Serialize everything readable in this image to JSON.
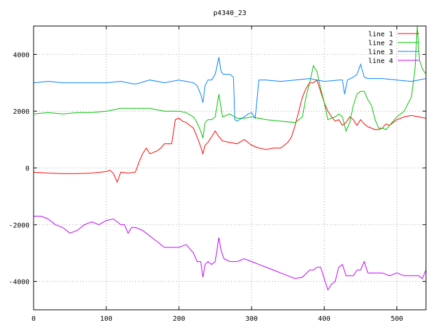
{
  "chart_data": {
    "type": "line",
    "title": "p4340_23",
    "xlabel": "",
    "ylabel": "",
    "xlim": [
      0,
      540
    ],
    "ylim": [
      -5000,
      5000
    ],
    "xticks": [
      0,
      100,
      200,
      300,
      400,
      500
    ],
    "yticks": [
      -4000,
      -2000,
      0,
      2000,
      4000
    ],
    "grid": true,
    "legend_position": "top-right",
    "series": [
      {
        "name": "line 1",
        "color": "#ff0000",
        "x": [
          0,
          20,
          40,
          60,
          80,
          100,
          105,
          110,
          115,
          120,
          130,
          140,
          145,
          150,
          155,
          160,
          165,
          170,
          175,
          180,
          185,
          190,
          195,
          200,
          205,
          210,
          215,
          220,
          225,
          230,
          233,
          236,
          240,
          245,
          250,
          255,
          260,
          270,
          280,
          290,
          300,
          310,
          320,
          330,
          340,
          350,
          355,
          360,
          365,
          370,
          375,
          380,
          385,
          390,
          395,
          400,
          405,
          410,
          415,
          420,
          425,
          430,
          435,
          440,
          445,
          450,
          455,
          460,
          465,
          470,
          475,
          480,
          485,
          490,
          500,
          510,
          520,
          530,
          540
        ],
        "values": [
          -150,
          -180,
          -200,
          -200,
          -180,
          -130,
          -80,
          -200,
          -500,
          -150,
          -180,
          -150,
          200,
          500,
          700,
          500,
          550,
          600,
          700,
          850,
          850,
          850,
          1700,
          1750,
          1650,
          1600,
          1500,
          1400,
          1100,
          750,
          500,
          800,
          900,
          1100,
          1300,
          1100,
          950,
          900,
          850,
          1000,
          800,
          700,
          650,
          700,
          700,
          900,
          1100,
          1500,
          2000,
          2500,
          2800,
          3000,
          3000,
          3100,
          2700,
          2300,
          2000,
          1800,
          1650,
          1700,
          1500,
          1600,
          1800,
          1700,
          1500,
          1700,
          1550,
          1450,
          1400,
          1350,
          1350,
          1400,
          1550,
          1500,
          1700,
          1800,
          1850,
          1800,
          1750
        ]
      },
      {
        "name": "line 2",
        "color": "#00c000",
        "x": [
          0,
          20,
          40,
          60,
          80,
          100,
          120,
          140,
          160,
          180,
          200,
          210,
          220,
          225,
          230,
          233,
          236,
          240,
          245,
          250,
          255,
          260,
          270,
          280,
          290,
          300,
          320,
          340,
          360,
          370,
          375,
          380,
          385,
          390,
          395,
          400,
          405,
          410,
          415,
          420,
          425,
          430,
          435,
          440,
          445,
          450,
          455,
          460,
          465,
          470,
          475,
          480,
          485,
          490,
          500,
          510,
          520,
          525,
          528,
          531,
          535,
          540
        ],
        "values": [
          1900,
          1950,
          1900,
          1950,
          1950,
          2000,
          2100,
          2100,
          2100,
          2000,
          2000,
          1950,
          1800,
          1600,
          1300,
          1050,
          1600,
          1700,
          1700,
          1800,
          2600,
          1800,
          1900,
          1750,
          1750,
          1800,
          1700,
          1650,
          1600,
          1800,
          2500,
          3000,
          3600,
          3400,
          2800,
          2300,
          1700,
          1750,
          1800,
          1900,
          1800,
          1300,
          1600,
          2200,
          2600,
          2700,
          2700,
          2400,
          2200,
          1700,
          1400,
          1400,
          1350,
          1500,
          1800,
          2000,
          2500,
          3500,
          5000,
          3800,
          3500,
          3300
        ]
      },
      {
        "name": "line 3",
        "color": "#0080ff",
        "x": [
          0,
          20,
          40,
          60,
          80,
          100,
          120,
          140,
          160,
          180,
          200,
          210,
          220,
          225,
          230,
          233,
          236,
          240,
          245,
          250,
          255,
          258,
          261,
          265,
          270,
          275,
          277,
          280,
          290,
          295,
          300,
          305,
          310,
          320,
          340,
          360,
          380,
          400,
          420,
          425,
          428,
          432,
          440,
          445,
          450,
          455,
          460,
          480,
          500,
          520,
          530,
          540
        ],
        "values": [
          3000,
          3050,
          3000,
          3000,
          3000,
          3000,
          3050,
          2950,
          3100,
          3000,
          3100,
          3050,
          3000,
          2900,
          2600,
          2300,
          2900,
          3100,
          3100,
          3300,
          3900,
          3400,
          3300,
          3300,
          3300,
          3200,
          1700,
          1650,
          1800,
          1900,
          1950,
          1750,
          3100,
          3100,
          3050,
          3100,
          3150,
          3050,
          3100,
          3100,
          2600,
          3100,
          3200,
          3300,
          3650,
          3200,
          3150,
          3150,
          3100,
          3050,
          3100,
          3150
        ]
      },
      {
        "name": "line 4",
        "color": "#c000ff",
        "x": [
          0,
          10,
          20,
          30,
          40,
          50,
          60,
          70,
          80,
          90,
          100,
          110,
          120,
          125,
          130,
          135,
          140,
          150,
          160,
          170,
          180,
          190,
          200,
          210,
          220,
          225,
          230,
          233,
          236,
          240,
          245,
          250,
          255,
          258,
          262,
          270,
          280,
          290,
          300,
          310,
          320,
          330,
          340,
          350,
          360,
          370,
          380,
          385,
          390,
          395,
          400,
          405,
          410,
          415,
          420,
          425,
          430,
          440,
          445,
          450,
          455,
          460,
          470,
          480,
          490,
          500,
          510,
          520,
          530,
          535,
          540
        ],
        "values": [
          -1700,
          -1700,
          -1800,
          -2000,
          -2100,
          -2300,
          -2200,
          -2000,
          -1900,
          -2000,
          -1850,
          -1800,
          -2000,
          -2000,
          -2300,
          -2100,
          -2100,
          -2200,
          -2400,
          -2600,
          -2800,
          -2800,
          -2800,
          -2700,
          -3000,
          -3300,
          -3300,
          -3850,
          -3400,
          -3300,
          -3400,
          -3300,
          -2450,
          -2900,
          -3200,
          -3300,
          -3300,
          -3200,
          -3300,
          -3400,
          -3500,
          -3600,
          -3700,
          -3800,
          -3900,
          -3850,
          -3600,
          -3600,
          -3500,
          -3500,
          -3900,
          -4300,
          -4100,
          -4000,
          -3500,
          -3400,
          -3800,
          -3800,
          -3600,
          -3600,
          -3300,
          -3700,
          -3700,
          -3700,
          -3800,
          -3700,
          -3800,
          -3800,
          -3800,
          -3900,
          -3600
        ]
      }
    ]
  }
}
